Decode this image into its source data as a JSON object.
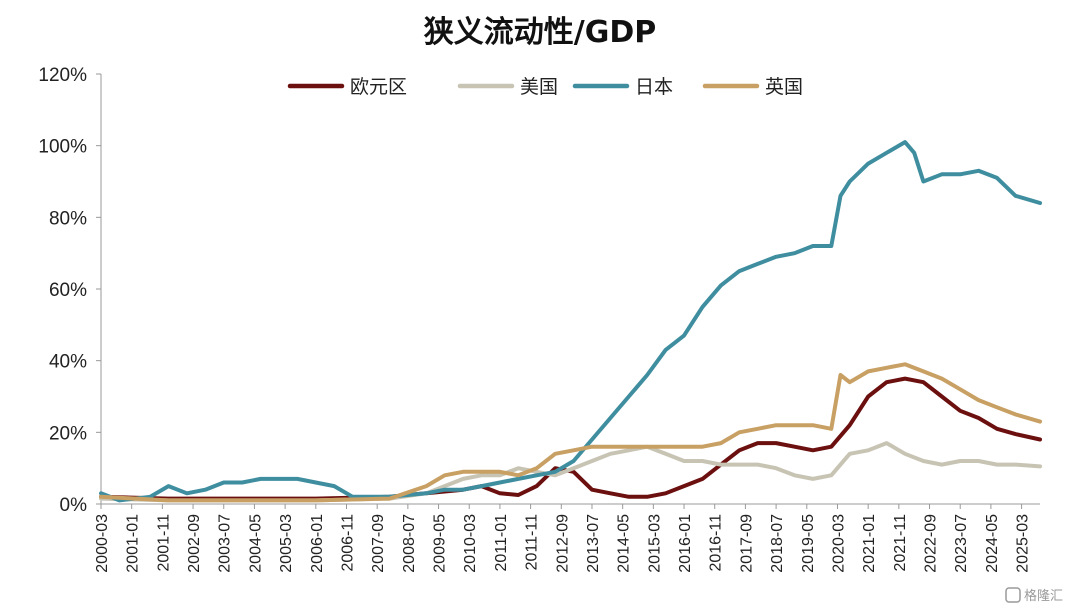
{
  "chart_data": {
    "type": "line",
    "title": "狭义流动性/GDP",
    "xlabel": "",
    "ylabel": "",
    "ylim": [
      0,
      120
    ],
    "y_ticks": [
      "0%",
      "20%",
      "40%",
      "60%",
      "80%",
      "100%",
      "120%"
    ],
    "x_tick_labels": [
      "2000-03",
      "2001-01",
      "2001-11",
      "2002-09",
      "2003-07",
      "2004-05",
      "2005-03",
      "2006-01",
      "2006-11",
      "2007-09",
      "2008-07",
      "2009-05",
      "2010-03",
      "2011-01",
      "2011-11",
      "2012-09",
      "2013-07",
      "2014-05",
      "2015-03",
      "2016-01",
      "2016-11",
      "2017-09",
      "2018-07",
      "2019-05",
      "2020-03",
      "2021-01",
      "2021-11",
      "2022-09",
      "2023-07",
      "2024-05",
      "2025-03"
    ],
    "x_range": [
      "2000-03",
      "2025-09"
    ],
    "grid": false,
    "legend_position": "top",
    "series": [
      {
        "name": "欧元区",
        "color": "#6b0f0f",
        "x": [
          "2000-03",
          "2002-01",
          "2004-01",
          "2006-01",
          "2008-01",
          "2009-01",
          "2010-01",
          "2010-07",
          "2011-01",
          "2011-07",
          "2012-01",
          "2012-07",
          "2013-01",
          "2013-07",
          "2014-01",
          "2014-07",
          "2015-01",
          "2015-07",
          "2016-01",
          "2016-07",
          "2017-01",
          "2017-07",
          "2018-01",
          "2018-07",
          "2019-01",
          "2019-07",
          "2020-01",
          "2020-07",
          "2021-01",
          "2021-07",
          "2022-01",
          "2022-07",
          "2023-01",
          "2023-07",
          "2024-01",
          "2024-07",
          "2025-01",
          "2025-09"
        ],
        "values": [
          2,
          1.5,
          1.5,
          1.5,
          2,
          3,
          4,
          5,
          3,
          2.5,
          5,
          10,
          9,
          4,
          3,
          2,
          2,
          3,
          5,
          7,
          11,
          15,
          17,
          17,
          16,
          15,
          16,
          22,
          30,
          34,
          35,
          34,
          30,
          26,
          24,
          21,
          19.5,
          18
        ]
      },
      {
        "name": "美国",
        "color": "#c8c4b4",
        "x": [
          "2000-03",
          "2002-01",
          "2004-01",
          "2006-01",
          "2008-01",
          "2009-01",
          "2009-07",
          "2010-01",
          "2010-07",
          "2011-01",
          "2011-07",
          "2012-01",
          "2012-07",
          "2013-01",
          "2013-07",
          "2014-01",
          "2014-07",
          "2015-01",
          "2015-07",
          "2016-01",
          "2016-07",
          "2017-01",
          "2017-07",
          "2018-01",
          "2018-07",
          "2019-01",
          "2019-07",
          "2020-01",
          "2020-07",
          "2021-01",
          "2021-07",
          "2022-01",
          "2022-07",
          "2023-01",
          "2023-07",
          "2024-01",
          "2024-07",
          "2025-01",
          "2025-09"
        ],
        "values": [
          1.5,
          1,
          1,
          1,
          1.5,
          3,
          5,
          7,
          8,
          8,
          10,
          9,
          8,
          10,
          12,
          14,
          15,
          16,
          14,
          12,
          12,
          11,
          11,
          11,
          10,
          8,
          7,
          8,
          14,
          15,
          17,
          14,
          12,
          11,
          12,
          12,
          11,
          11,
          10.5
        ]
      },
      {
        "name": "日本",
        "color": "#3f8ea0",
        "x": [
          "2000-03",
          "2000-09",
          "2001-07",
          "2002-01",
          "2002-07",
          "2003-01",
          "2003-07",
          "2004-01",
          "2004-07",
          "2005-01",
          "2005-07",
          "2006-01",
          "2006-07",
          "2007-01",
          "2007-07",
          "2008-01",
          "2008-07",
          "2009-01",
          "2009-07",
          "2010-01",
          "2010-07",
          "2011-01",
          "2011-07",
          "2012-01",
          "2012-07",
          "2013-01",
          "2013-07",
          "2014-01",
          "2014-07",
          "2015-01",
          "2015-07",
          "2016-01",
          "2016-07",
          "2017-01",
          "2017-07",
          "2018-01",
          "2018-07",
          "2019-01",
          "2019-07",
          "2020-01",
          "2020-04",
          "2020-07",
          "2021-01",
          "2021-07",
          "2022-01",
          "2022-04",
          "2022-07",
          "2023-01",
          "2023-07",
          "2024-01",
          "2024-07",
          "2025-01",
          "2025-09"
        ],
        "values": [
          3,
          1,
          2,
          5,
          3,
          4,
          6,
          6,
          7,
          7,
          7,
          6,
          5,
          2,
          2,
          2,
          2.5,
          3,
          4,
          4,
          5,
          6,
          7,
          8,
          9,
          12,
          18,
          24,
          30,
          36,
          43,
          47,
          55,
          61,
          65,
          67,
          69,
          70,
          72,
          72,
          86,
          90,
          95,
          98,
          101,
          98,
          90,
          92,
          92,
          93,
          91,
          86,
          84
        ]
      },
      {
        "name": "英国",
        "color": "#c8a064",
        "x": [
          "2000-03",
          "2002-01",
          "2004-01",
          "2006-01",
          "2008-01",
          "2009-01",
          "2009-07",
          "2010-01",
          "2010-07",
          "2011-01",
          "2011-07",
          "2012-01",
          "2012-07",
          "2013-01",
          "2013-07",
          "2014-01",
          "2014-07",
          "2015-01",
          "2015-07",
          "2016-01",
          "2016-07",
          "2017-01",
          "2017-07",
          "2018-01",
          "2018-07",
          "2019-01",
          "2019-07",
          "2020-01",
          "2020-04",
          "2020-07",
          "2021-01",
          "2021-07",
          "2022-01",
          "2022-07",
          "2023-01",
          "2023-07",
          "2024-01",
          "2024-07",
          "2025-01",
          "2025-09"
        ],
        "values": [
          2,
          1,
          1,
          1,
          1.5,
          5,
          8,
          9,
          9,
          9,
          8,
          10,
          14,
          15,
          16,
          16,
          16,
          16,
          16,
          16,
          16,
          17,
          20,
          21,
          22,
          22,
          22,
          21,
          36,
          34,
          37,
          38,
          39,
          37,
          35,
          32,
          29,
          27,
          25,
          23
        ]
      }
    ]
  },
  "watermark": "格隆汇"
}
